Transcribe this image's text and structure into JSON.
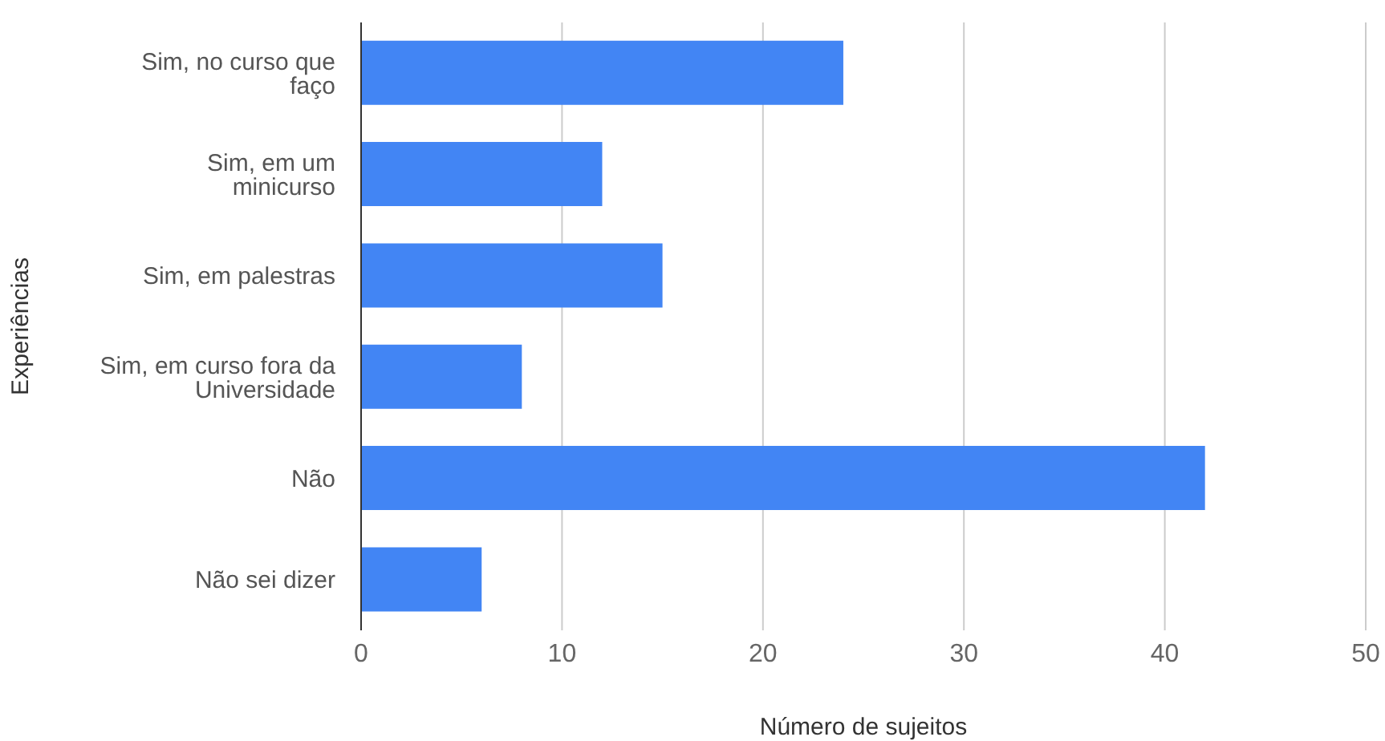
{
  "chart_data": {
    "type": "bar",
    "orientation": "horizontal",
    "xlabel": "Número de sujeitos",
    "ylabel": "Experiências",
    "categories": [
      "Sim, no curso que faço",
      "Sim, em um minicurso",
      "Sim, em palestras",
      "Sim, em curso fora da Universidade",
      "Não",
      "Não sei dizer"
    ],
    "values": [
      24,
      12,
      15,
      8,
      42,
      6
    ],
    "color": "#4285f4",
    "xlim": [
      0,
      50
    ],
    "xticks": [
      0,
      10,
      20,
      30,
      40,
      50
    ],
    "grid": "x"
  }
}
